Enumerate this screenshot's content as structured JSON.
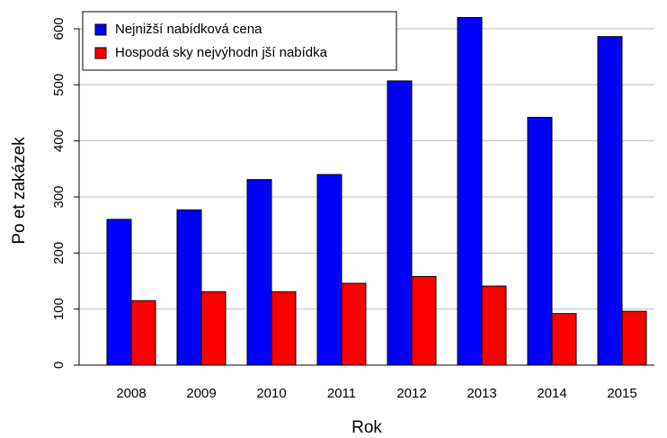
{
  "chart_data": {
    "type": "bar",
    "categories": [
      "2008",
      "2009",
      "2010",
      "2011",
      "2012",
      "2013",
      "2014",
      "2015"
    ],
    "series": [
      {
        "name": "Nejnižší nabídková cena",
        "color": "#0000ff",
        "values": [
          260,
          277,
          331,
          340,
          507,
          620,
          442,
          586
        ]
      },
      {
        "name": "Hospodá sky nejvýhodn jší nabídka",
        "color": "#ff0000",
        "values": [
          115,
          131,
          131,
          146,
          158,
          141,
          92,
          96
        ]
      }
    ],
    "xlabel": "Rok",
    "ylabel": "Po et zakázek",
    "ylim": [
      0,
      620
    ],
    "yticks": [
      0,
      100,
      200,
      300,
      400,
      500,
      600
    ],
    "grid": true,
    "legend": "top-left"
  }
}
